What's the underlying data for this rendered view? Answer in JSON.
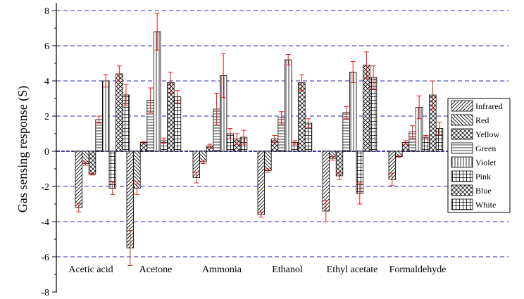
{
  "chart_data": {
    "type": "bar",
    "title": "",
    "xlabel": "",
    "ylabel": "Gas sensing response (S)",
    "ylim": [
      -8,
      8
    ],
    "yticks": [
      -8,
      -6,
      -4,
      -2,
      0,
      2,
      4,
      6,
      8
    ],
    "grid": "dashed horizontal lines at major y ticks",
    "legend_position": "right",
    "categories": [
      "Acetic acid",
      "Acetone",
      "Ammonia",
      "Ethanol",
      "Ethyl acetate",
      "Formaldehyde"
    ],
    "series": [
      {
        "name": "Infrared",
        "pattern": "diag-up",
        "values": [
          -3.2,
          -5.5,
          -1.5,
          -3.6,
          -3.4,
          -1.6
        ],
        "errors": [
          0.25,
          1.0,
          0.3,
          0.15,
          0.6,
          0.35
        ]
      },
      {
        "name": "Red",
        "pattern": "diag-down",
        "values": [
          -0.7,
          -2.1,
          -0.6,
          -1.1,
          -0.4,
          -0.3
        ],
        "errors": [
          0.1,
          0.35,
          0.1,
          0.1,
          0.1,
          0.05
        ]
      },
      {
        "name": "Yellow",
        "pattern": "cross",
        "values": [
          -1.3,
          0.5,
          0.3,
          0.7,
          -1.4,
          0.5
        ],
        "errors": [
          0.05,
          0.05,
          0.1,
          0.2,
          0.2,
          0.1
        ]
      },
      {
        "name": "Green",
        "pattern": "horizontal",
        "values": [
          1.8,
          2.9,
          2.4,
          1.9,
          2.2,
          1.1
        ],
        "errors": [
          0.2,
          0.7,
          0.9,
          0.35,
          0.35,
          0.35
        ]
      },
      {
        "name": "Violet",
        "pattern": "vertical",
        "values": [
          4.0,
          6.8,
          4.3,
          5.2,
          4.5,
          2.5
        ],
        "errors": [
          0.35,
          1.05,
          1.25,
          0.3,
          0.6,
          0.65
        ]
      },
      {
        "name": "Pink",
        "pattern": "grid",
        "values": [
          -2.1,
          0.6,
          1.0,
          0.5,
          -2.4,
          0.8
        ],
        "errors": [
          0.35,
          0.15,
          0.3,
          0.1,
          0.6,
          0.1
        ]
      },
      {
        "name": "Blue",
        "pattern": "cross",
        "values": [
          4.4,
          3.9,
          0.7,
          3.9,
          4.9,
          3.2
        ],
        "errors": [
          0.45,
          0.6,
          0.3,
          0.45,
          0.75,
          0.8
        ]
      },
      {
        "name": "White",
        "pattern": "grid",
        "values": [
          3.2,
          3.1,
          0.8,
          1.6,
          4.2,
          1.3
        ],
        "errors": [
          0.6,
          0.35,
          0.4,
          0.25,
          0.65,
          0.35
        ]
      }
    ],
    "colors": {
      "bar_stroke": "#000000",
      "error_bar": "#e8191c",
      "grid": "#2020c8",
      "zero_line": "#20208a"
    }
  }
}
